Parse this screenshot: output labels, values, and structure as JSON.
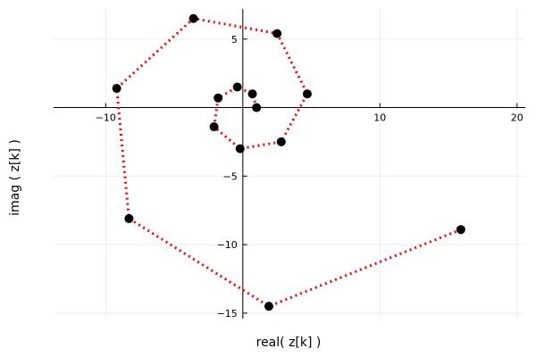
{
  "chart_data": {
    "type": "scatter",
    "xlabel": "real( z[k] )",
    "ylabel": "imag ( z[k] )",
    "xlim": [
      -13.8,
      20.6
    ],
    "ylim": [
      -15.4,
      7.2
    ],
    "xticks": [
      -10,
      10,
      20
    ],
    "xtick_labels": [
      "−10",
      "10",
      "20"
    ],
    "grid_x": [
      -10,
      0,
      10,
      20
    ],
    "yticks": [
      5,
      -5,
      -10,
      -15
    ],
    "ytick_labels": [
      "5",
      "−5",
      "−10",
      "−15"
    ],
    "grid_y": [
      5,
      0,
      -5,
      -10,
      -15
    ],
    "grid": true,
    "legend": "none",
    "line_style": "dotted",
    "line_color": "#ff0000",
    "marker_color": "#000000",
    "points": [
      {
        "x": 1.0,
        "y": 0.0
      },
      {
        "x": 0.7,
        "y": 1.0
      },
      {
        "x": -0.4,
        "y": 1.5
      },
      {
        "x": -1.8,
        "y": 0.7
      },
      {
        "x": -2.1,
        "y": -1.4
      },
      {
        "x": -0.2,
        "y": -3.0
      },
      {
        "x": 2.8,
        "y": -2.5
      },
      {
        "x": 4.7,
        "y": 1.0
      },
      {
        "x": 2.5,
        "y": 5.4
      },
      {
        "x": -3.6,
        "y": 6.5
      },
      {
        "x": -9.2,
        "y": 1.4
      },
      {
        "x": -8.3,
        "y": -8.1
      },
      {
        "x": 1.9,
        "y": -14.5
      },
      {
        "x": 15.9,
        "y": -8.9
      }
    ]
  }
}
